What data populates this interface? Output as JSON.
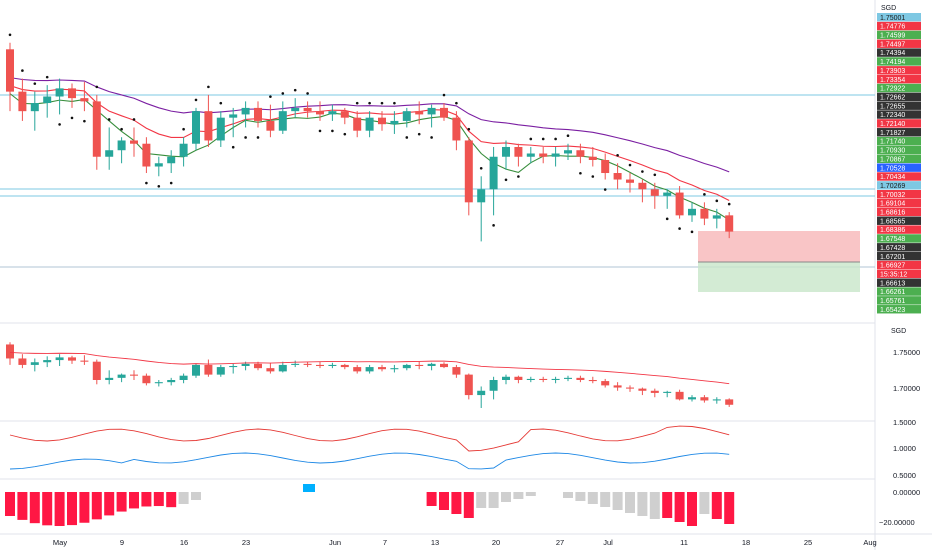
{
  "currency": "SGD",
  "main_scale_labels": [
    {
      "text": "1.75001",
      "bg": "#7ec8e3",
      "fg": "#1a1a1a"
    },
    {
      "text": "1.74776",
      "bg": "#f23645",
      "fg": "#ffffff"
    },
    {
      "text": "1.74599",
      "bg": "#4caf50",
      "fg": "#ffffff"
    },
    {
      "text": "1.74497",
      "bg": "#f23645",
      "fg": "#ffffff"
    },
    {
      "text": "1.74394",
      "bg": "#333333",
      "fg": "#ffffff"
    },
    {
      "text": "1.74194",
      "bg": "#4caf50",
      "fg": "#ffffff"
    },
    {
      "text": "1.73903",
      "bg": "#f23645",
      "fg": "#ffffff"
    },
    {
      "text": "1.73354",
      "bg": "#f23645",
      "fg": "#ffffff"
    },
    {
      "text": "1.72922",
      "bg": "#4caf50",
      "fg": "#ffffff"
    },
    {
      "text": "1.72662",
      "bg": "#333333",
      "fg": "#ffffff"
    },
    {
      "text": "1.72655",
      "bg": "#333333",
      "fg": "#ffffff"
    },
    {
      "text": "1.72340",
      "bg": "#333333",
      "fg": "#ffffff"
    },
    {
      "text": "1.72140",
      "bg": "#f23645",
      "fg": "#ffffff"
    },
    {
      "text": "1.71827",
      "bg": "#333333",
      "fg": "#ffffff"
    },
    {
      "text": "1.71740",
      "bg": "#4caf50",
      "fg": "#ffffff"
    },
    {
      "text": "1.70930",
      "bg": "#4caf50",
      "fg": "#ffffff"
    },
    {
      "text": "1.70867",
      "bg": "#4caf50",
      "fg": "#ffffff"
    },
    {
      "text": "1.70528",
      "bg": "#2962ff",
      "fg": "#ffffff"
    },
    {
      "text": "1.70434",
      "bg": "#f23645",
      "fg": "#ffffff"
    },
    {
      "text": "1.70269",
      "bg": "#7ec8e3",
      "fg": "#1a1a1a"
    },
    {
      "text": "1.70032",
      "bg": "#f23645",
      "fg": "#ffffff"
    },
    {
      "text": "1.69104",
      "bg": "#f23645",
      "fg": "#ffffff"
    },
    {
      "text": "1.68616",
      "bg": "#f23645",
      "fg": "#ffffff"
    },
    {
      "text": "1.68565",
      "bg": "#333333",
      "fg": "#ffffff"
    },
    {
      "text": "1.68386",
      "bg": "#f23645",
      "fg": "#ffffff"
    },
    {
      "text": "1.67548",
      "bg": "#4caf50",
      "fg": "#ffffff"
    },
    {
      "text": "1.67428",
      "bg": "#333333",
      "fg": "#ffffff"
    },
    {
      "text": "1.67201",
      "bg": "#333333",
      "fg": "#ffffff"
    },
    {
      "text": "1.66927",
      "bg": "#f23645",
      "fg": "#ffffff"
    },
    {
      "text": "15:35:12",
      "bg": "#f23645",
      "fg": "#ffffff"
    },
    {
      "text": "1.66613",
      "bg": "#333333",
      "fg": "#ffffff"
    },
    {
      "text": "1.66261",
      "bg": "#4caf50",
      "fg": "#ffffff"
    },
    {
      "text": "1.65761",
      "bg": "#4caf50",
      "fg": "#ffffff"
    },
    {
      "text": "1.65423",
      "bg": "#4caf50",
      "fg": "#ffffff"
    }
  ],
  "sub_pane": {
    "currency": "SGD",
    "price_ticks": [
      "1.75000",
      "1.70000"
    ],
    "osc_ticks": [
      "1.5000",
      "1.0000",
      "0.5000"
    ],
    "hist_ticks": [
      "0.00000",
      "−20.00000"
    ]
  },
  "time_axis": [
    "May",
    "9",
    "16",
    "23",
    "Jun",
    "7",
    "13",
    "20",
    "27",
    "Jul",
    "11",
    "18",
    "25",
    "Aug"
  ],
  "colors": {
    "up": "#26a69a",
    "down": "#ef5350",
    "ema_fast": "#f23645",
    "ema_slow": "#7b1fa2",
    "sma": "#388e3c",
    "osc_red": "#e53935",
    "osc_blue": "#1e88e5",
    "hist_pink": "#ff1744",
    "hist_gray": "#cfcfcf",
    "hist_cyan": "#00b0ff",
    "hline": "#7ec8e3"
  },
  "chart_data": {
    "type": "candlestick",
    "series": [
      {
        "name": "",
        "values": [
          [
            1.739,
            1.741,
            1.72,
            1.726
          ],
          [
            1.726,
            1.73,
            1.717,
            1.72
          ],
          [
            1.72,
            1.726,
            1.714,
            1.7225
          ],
          [
            1.7225,
            1.728,
            1.718,
            1.7245
          ],
          [
            1.7245,
            1.73,
            1.719,
            1.727
          ],
          [
            1.727,
            1.7285,
            1.721,
            1.724
          ],
          [
            1.724,
            1.729,
            1.72,
            1.723
          ],
          [
            1.723,
            1.725,
            1.702,
            1.706
          ],
          [
            1.706,
            1.715,
            1.702,
            1.708
          ],
          [
            1.708,
            1.712,
            1.704,
            1.711
          ],
          [
            1.711,
            1.715,
            1.706,
            1.71
          ],
          [
            1.71,
            1.712,
            1.701,
            1.703
          ],
          [
            1.703,
            1.706,
            1.7,
            1.704
          ],
          [
            1.704,
            1.708,
            1.701,
            1.706
          ],
          [
            1.706,
            1.712,
            1.703,
            1.71
          ],
          [
            1.71,
            1.721,
            1.708,
            1.72
          ],
          [
            1.72,
            1.725,
            1.709,
            1.711
          ],
          [
            1.711,
            1.72,
            1.709,
            1.718
          ],
          [
            1.718,
            1.721,
            1.712,
            1.719
          ],
          [
            1.719,
            1.723,
            1.715,
            1.721
          ],
          [
            1.721,
            1.723,
            1.715,
            1.717
          ],
          [
            1.717,
            1.722,
            1.712,
            1.714
          ],
          [
            1.714,
            1.723,
            1.713,
            1.72
          ],
          [
            1.72,
            1.724,
            1.718,
            1.721
          ],
          [
            1.721,
            1.723,
            1.718,
            1.72
          ],
          [
            1.72,
            1.723,
            1.717,
            1.719
          ],
          [
            1.719,
            1.722,
            1.717,
            1.72
          ],
          [
            1.72,
            1.721,
            1.716,
            1.718
          ],
          [
            1.718,
            1.72,
            1.712,
            1.714
          ],
          [
            1.714,
            1.72,
            1.712,
            1.718
          ],
          [
            1.718,
            1.72,
            1.714,
            1.716
          ],
          [
            1.716,
            1.72,
            1.713,
            1.717
          ],
          [
            1.717,
            1.721,
            1.715,
            1.72
          ],
          [
            1.72,
            1.723,
            1.716,
            1.719
          ],
          [
            1.719,
            1.722,
            1.715,
            1.721
          ],
          [
            1.721,
            1.7225,
            1.717,
            1.718
          ],
          [
            1.718,
            1.72,
            1.708,
            1.711
          ],
          [
            1.711,
            1.712,
            1.688,
            1.692
          ],
          [
            1.692,
            1.7,
            1.68,
            1.696
          ],
          [
            1.696,
            1.709,
            1.688,
            1.706
          ],
          [
            1.706,
            1.711,
            1.702,
            1.709
          ],
          [
            1.709,
            1.71,
            1.703,
            1.706
          ],
          [
            1.706,
            1.709,
            1.704,
            1.707
          ],
          [
            1.707,
            1.709,
            1.704,
            1.706
          ],
          [
            1.706,
            1.709,
            1.703,
            1.707
          ],
          [
            1.707,
            1.71,
            1.705,
            1.708
          ],
          [
            1.708,
            1.71,
            1.704,
            1.706
          ],
          [
            1.706,
            1.709,
            1.703,
            1.705
          ],
          [
            1.705,
            1.707,
            1.699,
            1.701
          ],
          [
            1.701,
            1.704,
            1.696,
            1.699
          ],
          [
            1.699,
            1.701,
            1.695,
            1.698
          ],
          [
            1.698,
            1.699,
            1.692,
            1.696
          ],
          [
            1.696,
            1.698,
            1.69,
            1.694
          ],
          [
            1.694,
            1.696,
            1.69,
            1.695
          ],
          [
            1.695,
            1.697,
            1.687,
            1.688
          ],
          [
            1.688,
            1.692,
            1.686,
            1.69
          ],
          [
            1.69,
            1.692,
            1.685,
            1.687
          ],
          [
            1.687,
            1.69,
            1.684,
            1.688
          ],
          [
            1.688,
            1.689,
            1.681,
            1.683
          ]
        ]
      }
    ]
  }
}
